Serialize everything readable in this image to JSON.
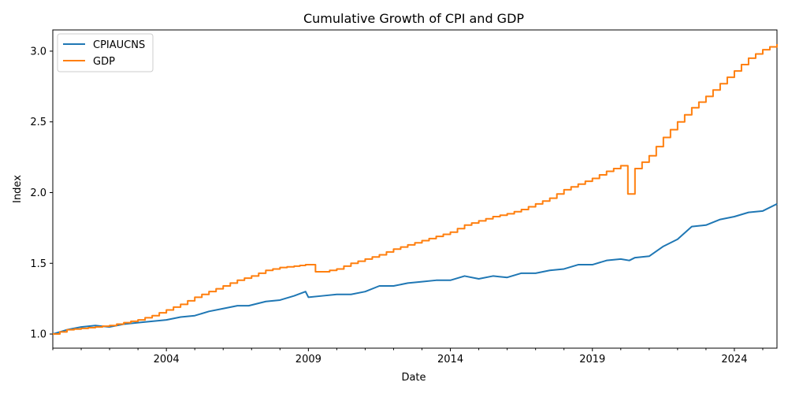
{
  "chart_data": {
    "type": "line",
    "title": "Cumulative Growth of CPI and GDP",
    "xlabel": "Date",
    "ylabel": "Index",
    "xlim": [
      2000.0,
      2025.5
    ],
    "ylim": [
      0.9,
      3.15
    ],
    "x_ticks": [
      2004,
      2009,
      2014,
      2019,
      2024
    ],
    "y_ticks": [
      1.0,
      1.5,
      2.0,
      2.5,
      3.0
    ],
    "y_tick_labels": [
      "1.0",
      "1.5",
      "2.0",
      "2.5",
      "3.0"
    ],
    "legend_position": "top-left",
    "grid": false,
    "series": [
      {
        "name": "CPIAUCNS",
        "color": "#1f77b4",
        "step": false,
        "x": [
          2000.0,
          2000.5,
          2001.0,
          2001.5,
          2002.0,
          2002.5,
          2003.0,
          2003.5,
          2004.0,
          2004.5,
          2005.0,
          2005.5,
          2006.0,
          2006.5,
          2006.9,
          2007.5,
          2008.0,
          2008.5,
          2008.9,
          2009.0,
          2009.5,
          2010.0,
          2010.5,
          2011.0,
          2011.5,
          2012.0,
          2012.5,
          2013.0,
          2013.5,
          2014.0,
          2014.5,
          2015.0,
          2015.5,
          2016.0,
          2016.5,
          2017.0,
          2017.5,
          2018.0,
          2018.5,
          2019.0,
          2019.5,
          2020.0,
          2020.3,
          2020.5,
          2021.0,
          2021.5,
          2022.0,
          2022.5,
          2023.0,
          2023.5,
          2024.0,
          2024.5,
          2025.0,
          2025.5
        ],
        "y": [
          1.0,
          1.03,
          1.05,
          1.06,
          1.05,
          1.07,
          1.08,
          1.09,
          1.1,
          1.12,
          1.13,
          1.16,
          1.18,
          1.2,
          1.2,
          1.23,
          1.24,
          1.27,
          1.3,
          1.26,
          1.27,
          1.28,
          1.28,
          1.3,
          1.34,
          1.34,
          1.36,
          1.37,
          1.38,
          1.38,
          1.41,
          1.39,
          1.41,
          1.4,
          1.43,
          1.43,
          1.45,
          1.46,
          1.49,
          1.49,
          1.52,
          1.53,
          1.52,
          1.54,
          1.55,
          1.62,
          1.67,
          1.76,
          1.77,
          1.81,
          1.83,
          1.86,
          1.87,
          1.92
        ]
      },
      {
        "name": "GDP",
        "color": "#ff7f0e",
        "step": true,
        "x": [
          2000.0,
          2000.5,
          2001.0,
          2001.5,
          2002.0,
          2002.5,
          2003.0,
          2003.5,
          2004.0,
          2004.5,
          2005.0,
          2005.5,
          2006.0,
          2006.5,
          2007.0,
          2007.5,
          2008.0,
          2008.5,
          2008.9,
          2009.25,
          2009.5,
          2010.0,
          2010.5,
          2011.0,
          2011.5,
          2012.0,
          2012.5,
          2013.0,
          2013.5,
          2014.0,
          2014.5,
          2015.0,
          2015.5,
          2016.0,
          2016.5,
          2017.0,
          2017.5,
          2018.0,
          2018.5,
          2019.0,
          2019.5,
          2020.0,
          2020.25,
          2020.5,
          2021.0,
          2021.5,
          2022.0,
          2022.5,
          2023.0,
          2023.5,
          2024.0,
          2024.5,
          2025.0,
          2025.5
        ],
        "y": [
          1.0,
          1.03,
          1.04,
          1.05,
          1.06,
          1.08,
          1.1,
          1.13,
          1.17,
          1.21,
          1.26,
          1.3,
          1.34,
          1.38,
          1.41,
          1.45,
          1.47,
          1.48,
          1.49,
          1.44,
          1.44,
          1.46,
          1.5,
          1.53,
          1.56,
          1.6,
          1.63,
          1.66,
          1.69,
          1.72,
          1.77,
          1.8,
          1.83,
          1.85,
          1.88,
          1.92,
          1.96,
          2.02,
          2.06,
          2.1,
          2.15,
          2.19,
          1.99,
          2.17,
          2.26,
          2.39,
          2.5,
          2.6,
          2.68,
          2.77,
          2.86,
          2.95,
          3.01,
          3.05
        ]
      }
    ]
  }
}
